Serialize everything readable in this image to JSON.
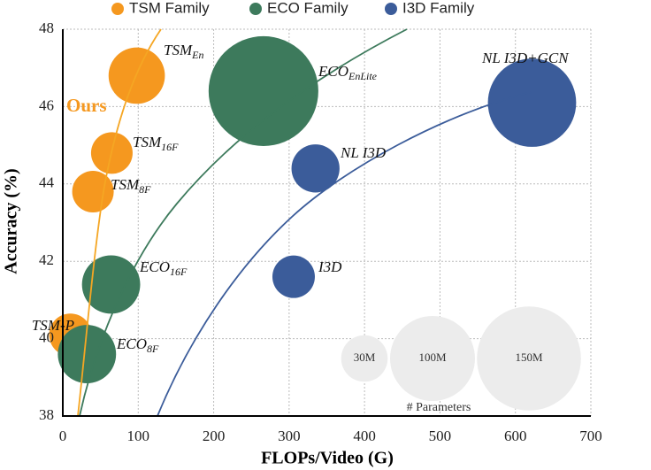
{
  "chart_data": {
    "type": "scatter",
    "xlabel": "FLOPs/Video (G)",
    "ylabel": "Accuracy (%)",
    "xlim": [
      0,
      700
    ],
    "xticks": [
      0,
      100,
      200,
      300,
      400,
      500,
      600,
      700
    ],
    "ylim": [
      38,
      48
    ],
    "yticks": [
      38,
      40,
      42,
      44,
      46,
      48
    ],
    "grid": true,
    "annotation": "Ours",
    "series": [
      {
        "name": "TSM Family",
        "color": "#f5981f",
        "x": [
          98,
          65,
          40,
          10
        ],
        "values": [
          46.8,
          44.8,
          43.8,
          40.1
        ],
        "sizes": [
          44,
          24,
          24,
          25
        ],
        "labels": [
          "TSM",
          "TSM",
          "TSM",
          "TSM-P"
        ],
        "label_subs": [
          "En",
          "16F",
          "8F",
          null
        ]
      },
      {
        "name": "ECO Family",
        "color": "#3d7a5c",
        "x": [
          266,
          64,
          32
        ],
        "values": [
          46.4,
          41.4,
          39.6
        ],
        "sizes": [
          167,
          47,
          47
        ],
        "labels": [
          "ECO",
          "ECO",
          "ECO"
        ],
        "label_subs": [
          "EnLite",
          "16F",
          "8F"
        ]
      },
      {
        "name": "I3D Family",
        "color": "#3b5c9a",
        "x": [
          622,
          335,
          306
        ],
        "values": [
          46.1,
          44.4,
          41.6
        ],
        "sizes": [
          108,
          32,
          25
        ],
        "labels": [
          "NL I3D+GCN",
          "NL I3D",
          "I3D"
        ],
        "label_subs": [
          null,
          null,
          null
        ]
      }
    ],
    "size_legend": {
      "title": "# Parameters",
      "sizes": [
        30,
        100,
        150
      ],
      "labels": [
        "30M",
        "100M",
        "150M"
      ]
    }
  }
}
